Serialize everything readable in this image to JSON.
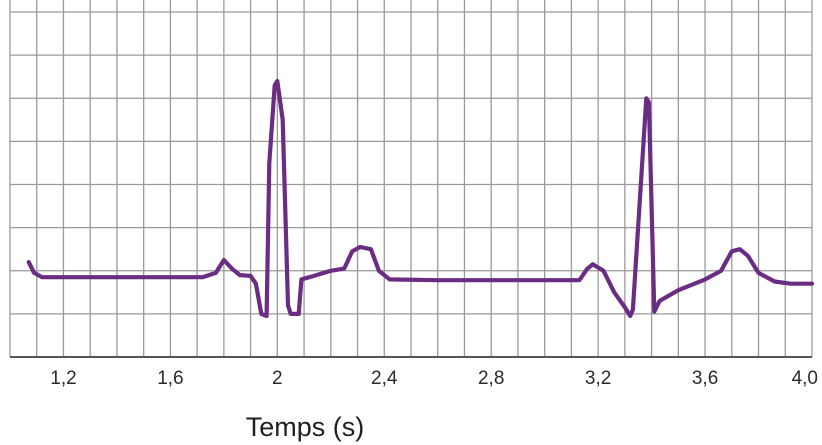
{
  "chart_data": {
    "type": "line",
    "title": "",
    "xlabel": "Temps (s)",
    "ylabel": "",
    "xlim": [
      1.0,
      4.0
    ],
    "ylim": [
      0,
      8
    ],
    "grid": true,
    "x_ticks": [
      1.2,
      1.6,
      2.0,
      2.4,
      2.8,
      3.2,
      3.6,
      4.0
    ],
    "x_tick_labels": [
      "1,2",
      "1,6",
      "2",
      "2,4",
      "2,8",
      "3,2",
      "3,6",
      "4,0"
    ],
    "line_color": "#6b2d83",
    "series": [
      {
        "points": [
          [
            1.07,
            2.2
          ],
          [
            1.09,
            1.95
          ],
          [
            1.12,
            1.85
          ],
          [
            1.3,
            1.85
          ],
          [
            1.5,
            1.85
          ],
          [
            1.72,
            1.85
          ],
          [
            1.77,
            1.95
          ],
          [
            1.8,
            2.25
          ],
          [
            1.83,
            2.05
          ],
          [
            1.86,
            1.9
          ],
          [
            1.9,
            1.88
          ],
          [
            1.92,
            1.7
          ],
          [
            1.94,
            1.0
          ],
          [
            1.96,
            0.95
          ],
          [
            1.97,
            4.5
          ],
          [
            1.99,
            6.3
          ],
          [
            2.0,
            6.4
          ],
          [
            2.02,
            5.5
          ],
          [
            2.04,
            1.2
          ],
          [
            2.05,
            1.0
          ],
          [
            2.08,
            1.0
          ],
          [
            2.09,
            1.8
          ],
          [
            2.12,
            1.85
          ],
          [
            2.2,
            2.0
          ],
          [
            2.25,
            2.05
          ],
          [
            2.28,
            2.45
          ],
          [
            2.31,
            2.55
          ],
          [
            2.35,
            2.5
          ],
          [
            2.38,
            2.0
          ],
          [
            2.42,
            1.8
          ],
          [
            2.6,
            1.78
          ],
          [
            2.8,
            1.78
          ],
          [
            3.0,
            1.78
          ],
          [
            3.13,
            1.78
          ],
          [
            3.16,
            2.05
          ],
          [
            3.18,
            2.15
          ],
          [
            3.22,
            2.0
          ],
          [
            3.26,
            1.5
          ],
          [
            3.3,
            1.15
          ],
          [
            3.32,
            0.95
          ],
          [
            3.33,
            1.1
          ],
          [
            3.38,
            6.0
          ],
          [
            3.39,
            5.9
          ],
          [
            3.41,
            1.05
          ],
          [
            3.43,
            1.3
          ],
          [
            3.5,
            1.55
          ],
          [
            3.6,
            1.8
          ],
          [
            3.66,
            2.0
          ],
          [
            3.7,
            2.45
          ],
          [
            3.73,
            2.5
          ],
          [
            3.76,
            2.35
          ],
          [
            3.8,
            1.95
          ],
          [
            3.86,
            1.75
          ],
          [
            3.92,
            1.7
          ],
          [
            4.0,
            1.7
          ]
        ]
      }
    ]
  }
}
